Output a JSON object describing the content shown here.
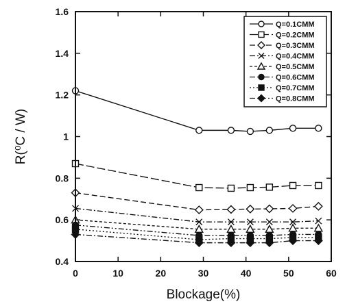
{
  "chart_data": {
    "type": "line",
    "xlabel": "Blockage(%)",
    "ylabel": "R(⁰C / W)",
    "xlim": [
      0,
      60
    ],
    "ylim": [
      0.4,
      1.6
    ],
    "xticks": [
      "0",
      "10",
      "20",
      "30",
      "40",
      "50",
      "60"
    ],
    "yticks": [
      "0.4",
      "0.6",
      "0.8",
      "1",
      "1.2",
      "1.4",
      "1.6"
    ],
    "grid": false,
    "legend_position": "top-right",
    "x": [
      0,
      29,
      36.5,
      41,
      45.5,
      51,
      57
    ],
    "series": [
      {
        "name": "Q=0.1CMM",
        "values": [
          1.22,
          1.03,
          1.03,
          1.025,
          1.03,
          1.04,
          1.04
        ],
        "marker": "open-circle",
        "dash": "solid"
      },
      {
        "name": "Q=0.2CMM",
        "values": [
          0.87,
          0.755,
          0.752,
          0.755,
          0.757,
          0.765,
          0.765
        ],
        "marker": "open-square",
        "dash": "long-dash"
      },
      {
        "name": "Q=0.3CMM",
        "values": [
          0.73,
          0.648,
          0.65,
          0.652,
          0.653,
          0.655,
          0.665
        ],
        "marker": "open-diamond",
        "dash": "dash"
      },
      {
        "name": "Q=0.4CMM",
        "values": [
          0.655,
          0.59,
          0.59,
          0.59,
          0.59,
          0.59,
          0.595
        ],
        "marker": "x",
        "dash": "dash-dot"
      },
      {
        "name": "Q=0.5CMM",
        "values": [
          0.6,
          0.555,
          0.555,
          0.555,
          0.555,
          0.56,
          0.56
        ],
        "marker": "open-triangle",
        "dash": "short-dash"
      },
      {
        "name": "Q=0.6CMM",
        "values": [
          0.575,
          0.525,
          0.525,
          0.525,
          0.525,
          0.53,
          0.53
        ],
        "marker": "filled-circle",
        "dash": "dash-dot-dot"
      },
      {
        "name": "Q=0.7CMM",
        "values": [
          0.555,
          0.505,
          0.51,
          0.51,
          0.51,
          0.515,
          0.515
        ],
        "marker": "filled-square",
        "dash": "dot"
      },
      {
        "name": "Q=0.8CMM",
        "values": [
          0.53,
          0.49,
          0.49,
          0.49,
          0.49,
          0.5,
          0.5
        ],
        "marker": "filled-diamond",
        "dash": "dash-dot"
      }
    ]
  }
}
